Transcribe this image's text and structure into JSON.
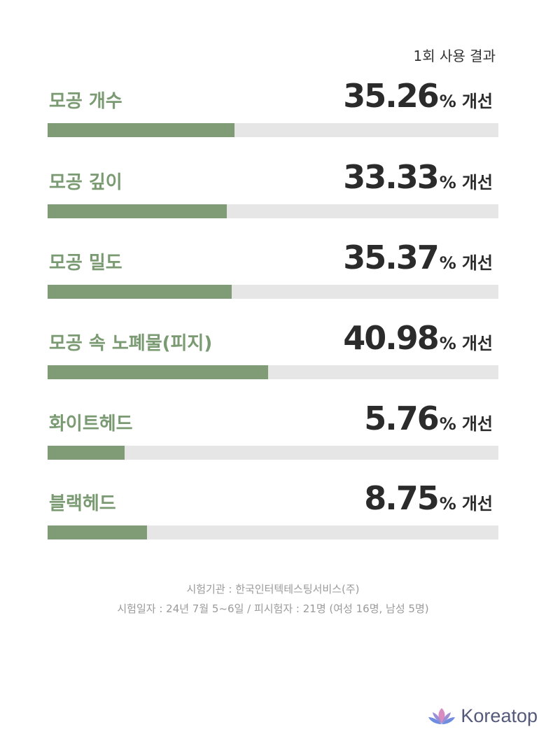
{
  "header": {
    "note": "1회 사용 결과"
  },
  "chart_data": {
    "type": "bar",
    "categories": [
      "모공 개수",
      "모공 깊이",
      "모공 밀도",
      "모공 속 노폐물(피지)",
      "화이트헤드",
      "블랙헤드"
    ],
    "values": [
      35.26,
      33.33,
      35.37,
      40.98,
      5.76,
      8.75
    ],
    "value_suffix": "%",
    "value_word": "개선",
    "bar_color": "#7f9c77",
    "track_color": "#e6e6e6"
  },
  "metrics": [
    {
      "label": "모공 개수",
      "value": "35.26",
      "pct": "%",
      "word": "개선",
      "fraction": 0.415
    },
    {
      "label": "모공 깊이",
      "value": "33.33",
      "pct": "%",
      "word": "개선",
      "fraction": 0.398
    },
    {
      "label": "모공 밀도",
      "value": "35.37",
      "pct": "%",
      "word": "개선",
      "fraction": 0.408
    },
    {
      "label": "모공 속 노폐물(피지)",
      "value": "40.98",
      "pct": "%",
      "word": "개선",
      "fraction": 0.489
    },
    {
      "label": "화이트헤드",
      "value": "5.76",
      "pct": "%",
      "word": "개선",
      "fraction": 0.171
    },
    {
      "label": "블랙헤드",
      "value": "8.75",
      "pct": "%",
      "word": "개선",
      "fraction": 0.221
    }
  ],
  "footer": {
    "line1": "시험기관 : 한국인터텍테스팅서비스(주)",
    "line2": "시험일자 : 24년 7월 5~6일 / 피시험자 : 21명 (여성 16명, 남성 5명)"
  },
  "brand": {
    "name": "Koreatop",
    "icon": "lotus-icon",
    "color": "#555a7a"
  }
}
